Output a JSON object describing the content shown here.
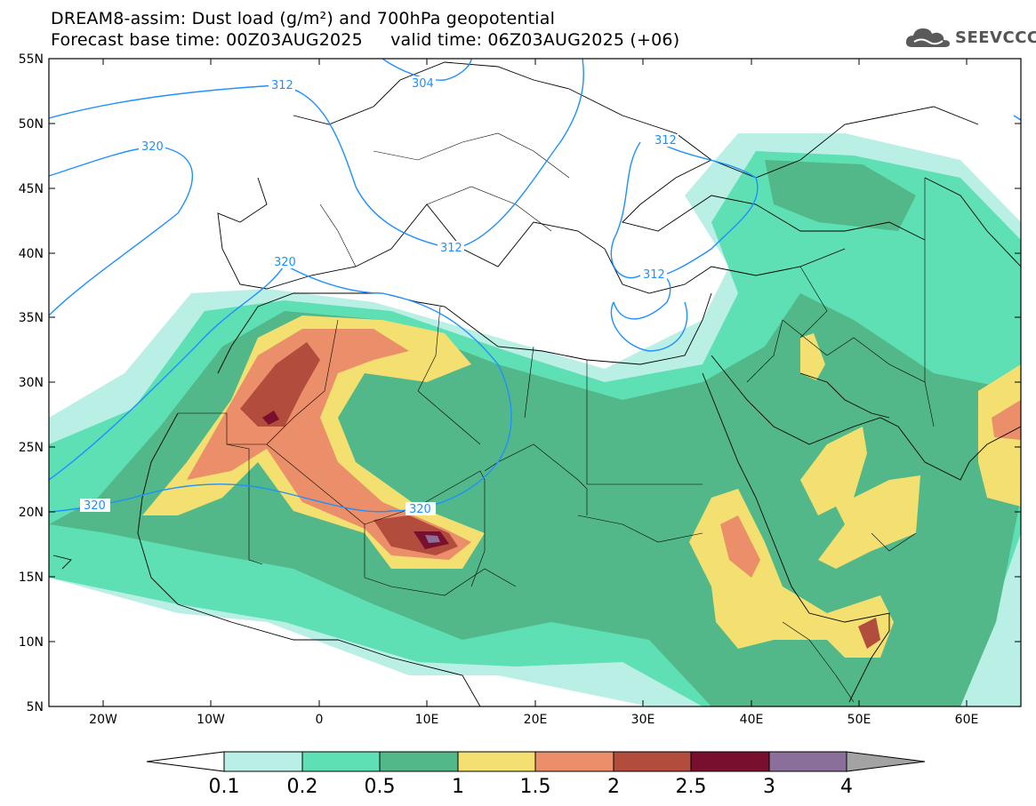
{
  "title": {
    "line1": "DREAM8-assim: Dust load (g/m²) and 700hPa geopotential",
    "line2": "Forecast base time: 00Z03AUG2025     valid time: 06Z03AUG2025 (+06)"
  },
  "logo": {
    "text": "SEEVCCC",
    "icon": "cloud-icon"
  },
  "axes": {
    "lat_labels": [
      "55N",
      "50N",
      "45N",
      "40N",
      "35N",
      "30N",
      "25N",
      "20N",
      "15N",
      "10N",
      "5N"
    ],
    "lon_labels": [
      "20W",
      "10W",
      "0",
      "10E",
      "20E",
      "30E",
      "40E",
      "50E",
      "60E"
    ]
  },
  "contours": {
    "labels": [
      "304",
      "312",
      "320",
      "320",
      "312",
      "312",
      "312",
      "320",
      "320"
    ],
    "color": "#1e90ff"
  },
  "colorbar": {
    "ticks": [
      "0.1",
      "0.2",
      "0.5",
      "1",
      "1.5",
      "2",
      "2.5",
      "3",
      "4"
    ],
    "colors": [
      "#b9efe5",
      "#5ee0b4",
      "#53b889",
      "#f3e070",
      "#ea8f6a",
      "#b24c3d",
      "#780f2e",
      "#8a6f9a",
      "#a3a3a3"
    ]
  }
}
